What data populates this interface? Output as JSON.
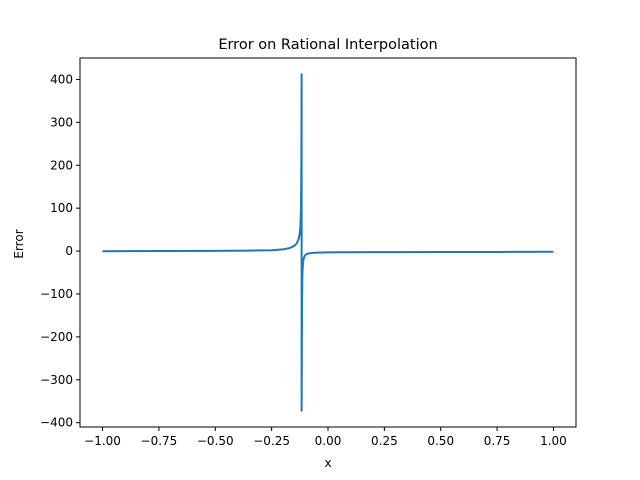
{
  "chart_data": {
    "type": "line",
    "title": "Error on Rational Interpolation",
    "xlabel": "x",
    "ylabel": "Error",
    "xlim": [
      -1.1,
      1.1
    ],
    "ylim": [
      -410,
      450
    ],
    "xticks": [
      -1.0,
      -0.75,
      -0.5,
      -0.25,
      0.0,
      0.25,
      0.5,
      0.75,
      1.0
    ],
    "xtick_labels": [
      "−1.00",
      "−0.75",
      "−0.50",
      "−0.25",
      "0.00",
      "0.25",
      "0.50",
      "0.75",
      "1.00"
    ],
    "yticks": [
      -400,
      -300,
      -200,
      -100,
      0,
      100,
      200,
      300,
      400
    ],
    "ytick_labels": [
      "−400",
      "−300",
      "−200",
      "−100",
      "0",
      "100",
      "200",
      "300",
      "400"
    ],
    "grid": false,
    "series": [
      {
        "color": "#1f77b4",
        "x": [
          -1.0,
          -0.75,
          -0.5,
          -0.35,
          -0.25,
          -0.2,
          -0.17,
          -0.15,
          -0.14,
          -0.13,
          -0.125,
          -0.122,
          -0.12,
          -0.119,
          -0.118,
          -0.117,
          -0.117,
          -0.116,
          -0.115,
          -0.114,
          -0.113,
          -0.11,
          -0.105,
          -0.1,
          -0.09,
          -0.08,
          -0.06,
          -0.04,
          0.0,
          0.05,
          0.1,
          0.2,
          0.3,
          0.5,
          0.75,
          1.0
        ],
        "y": [
          -0.3,
          0.2,
          0.5,
          1.0,
          2.0,
          4.0,
          7.0,
          12.0,
          17.0,
          28.0,
          42.0,
          60.0,
          100.0,
          140.0,
          220.0,
          412.0,
          -372.0,
          -220.0,
          -120.0,
          -70.0,
          -45.0,
          -22.0,
          -13.0,
          -9.0,
          -6.0,
          -5.0,
          -4.0,
          -3.5,
          -3.0,
          -2.8,
          -2.6,
          -2.5,
          -2.3,
          -2.2,
          -2.0,
          -1.7
        ]
      }
    ]
  }
}
